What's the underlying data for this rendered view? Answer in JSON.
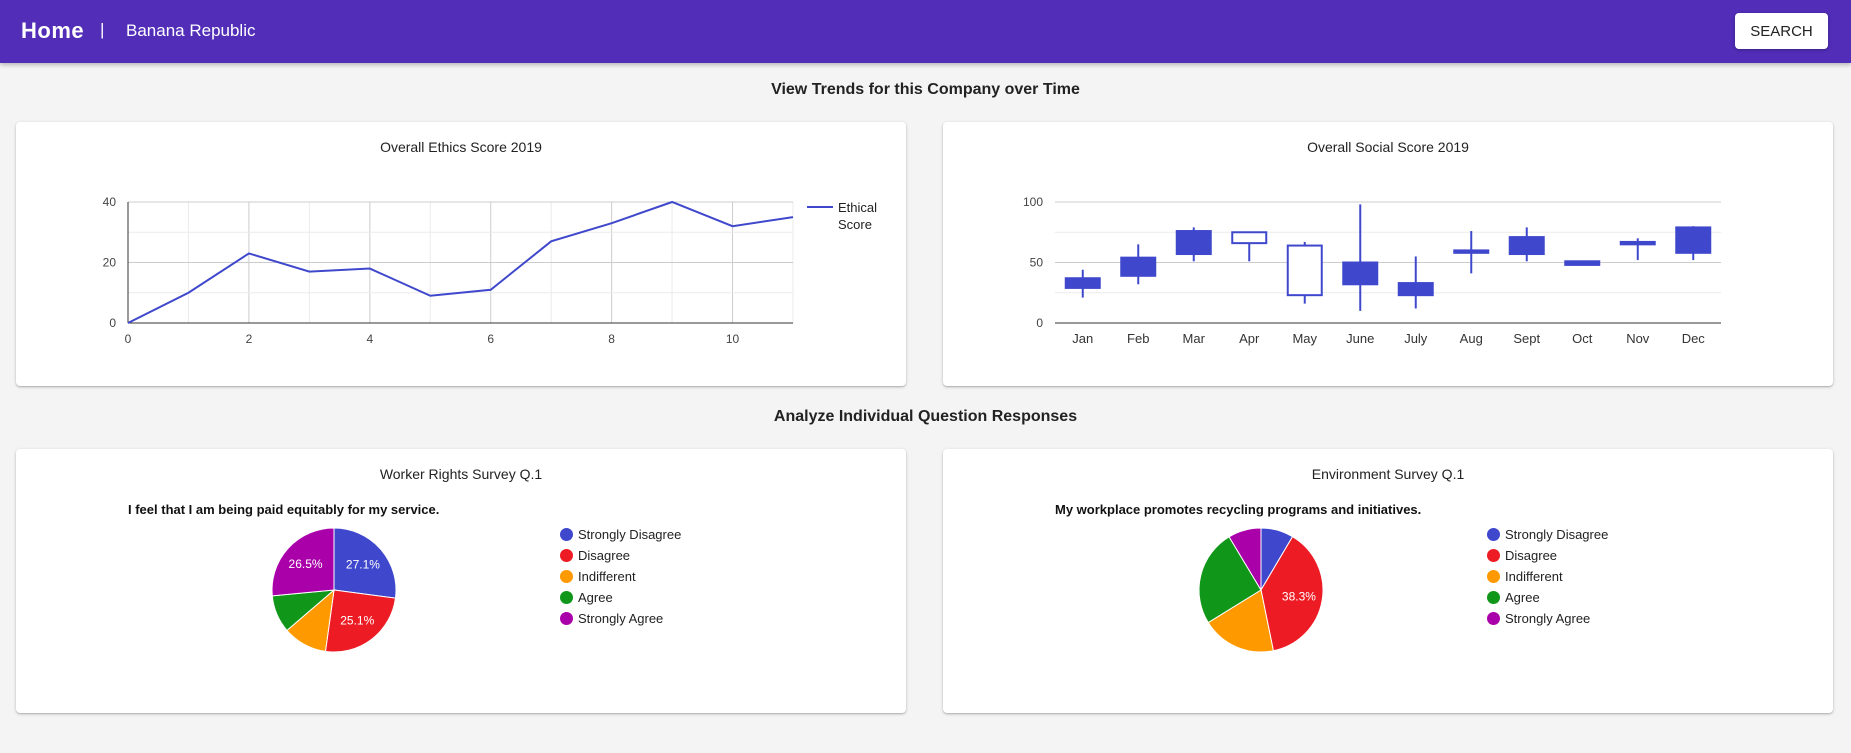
{
  "header": {
    "home_label": "Home",
    "separator": "|",
    "company": "Banana Republic",
    "search_label": "SEARCH"
  },
  "sections": {
    "trends_title": "View Trends for this Company over Time",
    "questions_title": "Analyze Individual Question Responses"
  },
  "colors": {
    "appbar": "#512db8",
    "series": "#3f48cc",
    "strongly_disagree": "#3f48cc",
    "disagree": "#ed1c24",
    "indifferent": "#ff9900",
    "agree": "#109618",
    "strongly_agree": "#aa00aa"
  },
  "chart_data": [
    {
      "id": "ethics",
      "type": "line",
      "title": "Overall Ethics Score 2019",
      "x": [
        0,
        1,
        2,
        3,
        4,
        5,
        6,
        7,
        8,
        9,
        10,
        11
      ],
      "series": [
        {
          "name": "Ethical Score",
          "values": [
            0,
            10,
            23,
            17,
            18,
            9,
            11,
            27,
            33,
            40,
            32,
            35
          ]
        }
      ],
      "xlim": [
        0,
        11
      ],
      "ylim": [
        0,
        40
      ],
      "xticks": [
        0,
        2,
        4,
        6,
        8,
        10
      ],
      "yticks": [
        0,
        20,
        40
      ],
      "grid": true,
      "legend": "right"
    },
    {
      "id": "social",
      "type": "candlestick",
      "title": "Overall Social Score 2019",
      "categories": [
        "Jan",
        "Feb",
        "Mar",
        "Apr",
        "May",
        "June",
        "July",
        "Aug",
        "Sept",
        "Oct",
        "Nov",
        "Dec"
      ],
      "candles": [
        {
          "low": 21,
          "open": 29,
          "close": 37,
          "high": 44
        },
        {
          "low": 32,
          "open": 39,
          "close": 54,
          "high": 65
        },
        {
          "low": 51,
          "open": 57,
          "close": 76,
          "high": 79
        },
        {
          "low": 51,
          "open": 75,
          "close": 66,
          "high": 75
        },
        {
          "low": 16,
          "open": 64,
          "close": 23,
          "high": 67
        },
        {
          "low": 10,
          "open": 32,
          "close": 50,
          "high": 98
        },
        {
          "low": 12,
          "open": 23,
          "close": 33,
          "high": 55
        },
        {
          "low": 41,
          "open": 58,
          "close": 60,
          "high": 76
        },
        {
          "low": 51,
          "open": 57,
          "close": 71,
          "high": 79
        },
        {
          "low": 48,
          "open": 48,
          "close": 51,
          "high": 51
        },
        {
          "low": 52,
          "open": 65,
          "close": 67,
          "high": 70
        },
        {
          "low": 52,
          "open": 58,
          "close": 79,
          "high": 80
        }
      ],
      "ylim": [
        0,
        100
      ],
      "yticks": [
        0,
        50,
        100
      ],
      "grid": true
    },
    {
      "id": "worker",
      "type": "pie",
      "title": "Worker Rights Survey Q.1",
      "question": "I feel that I am being paid equitably for my service.",
      "labels": [
        "Strongly Disagree",
        "Disagree",
        "Indifferent",
        "Agree",
        "Strongly Agree"
      ],
      "values": [
        27.1,
        25.1,
        11.5,
        9.8,
        26.5
      ],
      "value_labels": [
        "27.1%",
        "25.1%",
        "",
        "",
        "26.5%"
      ]
    },
    {
      "id": "environment",
      "type": "pie",
      "title": "Environment Survey Q.1",
      "question": "My workplace promotes recycling programs and initiatives.",
      "labels": [
        "Strongly Disagree",
        "Disagree",
        "Indifferent",
        "Agree",
        "Strongly Agree"
      ],
      "values": [
        8.5,
        38.3,
        19.4,
        25.2,
        8.6
      ],
      "value_labels": [
        "",
        "38.3%",
        "",
        "",
        ""
      ]
    }
  ]
}
